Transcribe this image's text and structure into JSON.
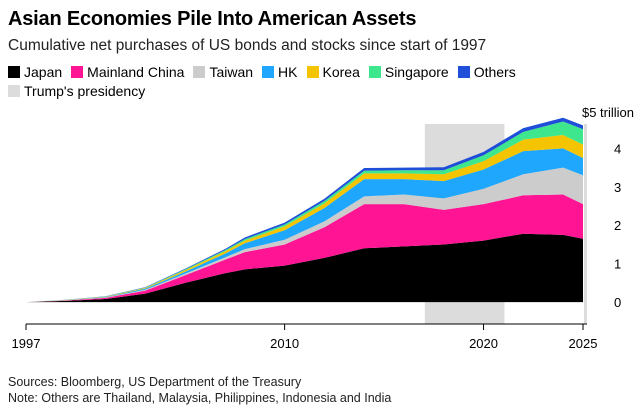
{
  "title": "Asian Economies Pile Into American Assets",
  "subtitle": "Cumulative net purchases of US bonds and stocks since start of 1997",
  "sources": "Sources: Bloomberg, US Department of the Treasury",
  "note": "Note: Others are Thailand, Malaysia, Philippines, Indonesia and India",
  "colors": {
    "Japan": "#000000",
    "Mainland China": "#ff1493",
    "Taiwan": "#cccccc",
    "HK": "#1ea7fd",
    "Korea": "#f5c400",
    "Singapore": "#3ee68e",
    "Others": "#1f4ed8",
    "Trump's presidency": "#dcdcdc"
  },
  "chart_data": {
    "type": "area",
    "stacked": true,
    "title": "Asian Economies Pile Into American Assets",
    "subtitle": "Cumulative net purchases of US bonds and stocks since start of 1997",
    "y_unit_label": "$5 trillion",
    "ylim": [
      0,
      5
    ],
    "yticks": [
      0,
      1,
      2,
      3,
      4
    ],
    "xlim": [
      1997,
      2025.2
    ],
    "xticks": [
      1997,
      2010,
      2020,
      2025
    ],
    "legend_position": "top",
    "x": [
      1997,
      1999,
      2001,
      2003,
      2005,
      2007,
      2008,
      2010,
      2012,
      2014,
      2016,
      2018,
      2020,
      2022,
      2024,
      2025
    ],
    "series": [
      {
        "name": "Japan",
        "values": [
          0,
          0.03,
          0.08,
          0.22,
          0.5,
          0.75,
          0.85,
          0.95,
          1.15,
          1.4,
          1.45,
          1.5,
          1.6,
          1.78,
          1.75,
          1.65
        ]
      },
      {
        "name": "Mainland China",
        "values": [
          0,
          0.01,
          0.03,
          0.08,
          0.2,
          0.35,
          0.45,
          0.55,
          0.8,
          1.15,
          1.1,
          0.9,
          0.95,
          1.0,
          1.05,
          0.9
        ]
      },
      {
        "name": "Taiwan",
        "values": [
          0,
          0.005,
          0.01,
          0.02,
          0.04,
          0.06,
          0.08,
          0.12,
          0.15,
          0.2,
          0.25,
          0.3,
          0.4,
          0.55,
          0.7,
          0.75
        ]
      },
      {
        "name": "HK",
        "values": [
          0,
          0.005,
          0.01,
          0.03,
          0.05,
          0.1,
          0.15,
          0.25,
          0.35,
          0.45,
          0.4,
          0.45,
          0.5,
          0.6,
          0.5,
          0.45
        ]
      },
      {
        "name": "Korea",
        "values": [
          0,
          0.005,
          0.01,
          0.02,
          0.04,
          0.06,
          0.07,
          0.1,
          0.12,
          0.15,
          0.15,
          0.18,
          0.22,
          0.3,
          0.35,
          0.35
        ]
      },
      {
        "name": "Singapore",
        "values": [
          0,
          0.002,
          0.005,
          0.01,
          0.02,
          0.03,
          0.04,
          0.05,
          0.06,
          0.07,
          0.08,
          0.1,
          0.15,
          0.2,
          0.35,
          0.4
        ]
      },
      {
        "name": "Others",
        "values": [
          0,
          0.002,
          0.005,
          0.01,
          0.02,
          0.03,
          0.04,
          0.05,
          0.06,
          0.07,
          0.07,
          0.08,
          0.09,
          0.1,
          0.1,
          0.1
        ]
      }
    ],
    "shaded_periods": [
      {
        "label": "Trump's presidency",
        "start": 2017.05,
        "end": 2021.05
      },
      {
        "label": "Trump's presidency",
        "start": 2025.05,
        "end": 2025.2
      }
    ]
  }
}
